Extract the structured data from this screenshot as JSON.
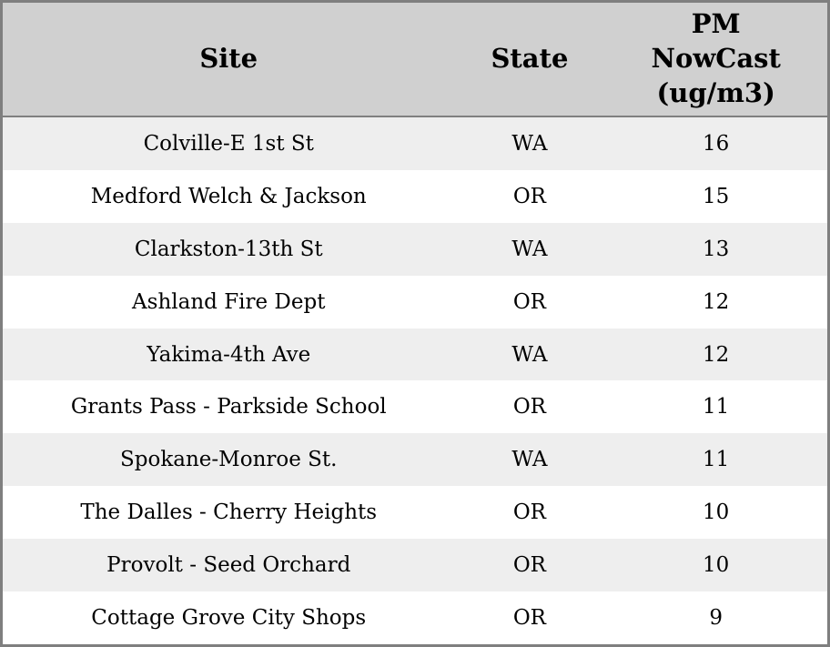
{
  "chart_data": {
    "type": "table",
    "columns": [
      "Site",
      "State",
      "PM NowCast (ug/m3)"
    ],
    "rows": [
      [
        "Colville-E 1st St",
        "WA",
        "16"
      ],
      [
        "Medford Welch & Jackson",
        "OR",
        "15"
      ],
      [
        "Clarkston-13th St",
        "WA",
        "13"
      ],
      [
        "Ashland Fire Dept",
        "OR",
        "12"
      ],
      [
        "Yakima-4th Ave",
        "WA",
        "12"
      ],
      [
        "Grants Pass - Parkside School",
        "OR",
        "11"
      ],
      [
        "Spokane-Monroe St.",
        "WA",
        "11"
      ],
      [
        "The Dalles - Cherry Heights",
        "OR",
        "10"
      ],
      [
        "Provolt - Seed Orchard",
        "OR",
        "10"
      ],
      [
        "Cottage Grove City Shops",
        "OR",
        "9"
      ]
    ]
  },
  "colors": {
    "header_bg": "#d0d0d0",
    "row_odd_bg": "#eeeeee",
    "row_even_bg": "#ffffff",
    "outer_border": "#7f7f7f",
    "header_divider": "#808080",
    "text": "#000000"
  }
}
